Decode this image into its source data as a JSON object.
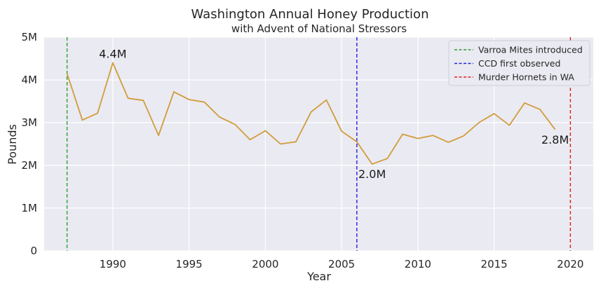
{
  "chart_data": {
    "type": "line",
    "title": "Washington Annual Honey Production",
    "subtitle": "with Advent of National Stressors",
    "xlabel": "Year",
    "ylabel": "Pounds",
    "xlim": [
      1985.5,
      2021.5
    ],
    "ylim": [
      0,
      5000000
    ],
    "x_ticks": [
      1990,
      1995,
      2000,
      2005,
      2010,
      2015,
      2020
    ],
    "y_ticks": [
      {
        "value": 0,
        "label": "0"
      },
      {
        "value": 1000000,
        "label": "1M"
      },
      {
        "value": 2000000,
        "label": "2M"
      },
      {
        "value": 3000000,
        "label": "3M"
      },
      {
        "value": 4000000,
        "label": "4M"
      },
      {
        "value": 5000000,
        "label": "5M"
      }
    ],
    "grid": true,
    "background": "#eaeaf2",
    "series": [
      {
        "color": "#d19c3b",
        "x": [
          1987,
          1988,
          1989,
          1990,
          1991,
          1992,
          1993,
          1994,
          1995,
          1996,
          1997,
          1998,
          1999,
          2000,
          2001,
          2002,
          2003,
          2004,
          2005,
          2006,
          2007,
          2008,
          2009,
          2010,
          2011,
          2012,
          2013,
          2014,
          2015,
          2016,
          2017,
          2018,
          2019
        ],
        "y": [
          4150000,
          3060000,
          3220000,
          4400000,
          3570000,
          3520000,
          2700000,
          3720000,
          3540000,
          3480000,
          3130000,
          2960000,
          2600000,
          2810000,
          2500000,
          2550000,
          3250000,
          3530000,
          2800000,
          2550000,
          2030000,
          2160000,
          2730000,
          2630000,
          2700000,
          2540000,
          2690000,
          3000000,
          3210000,
          2940000,
          3460000,
          3310000,
          2840000
        ]
      }
    ],
    "vlines": [
      {
        "x": 1987,
        "label": "Varroa Mites introduced",
        "color": "#2ca02c"
      },
      {
        "x": 2006,
        "label": "CCD first observed",
        "color": "#1f1fe0"
      },
      {
        "x": 2020,
        "label": "Murder Hornets in WA",
        "color": "#e02020"
      }
    ],
    "annotations": [
      {
        "x": 1990,
        "y": 4400000,
        "text": "4.4M",
        "anchor": "above"
      },
      {
        "x": 2007,
        "y": 2030000,
        "text": "2.0M",
        "anchor": "below"
      },
      {
        "x": 2019,
        "y": 2840000,
        "text": "2.8M",
        "anchor": "below"
      }
    ],
    "legend_position": "top-right"
  }
}
